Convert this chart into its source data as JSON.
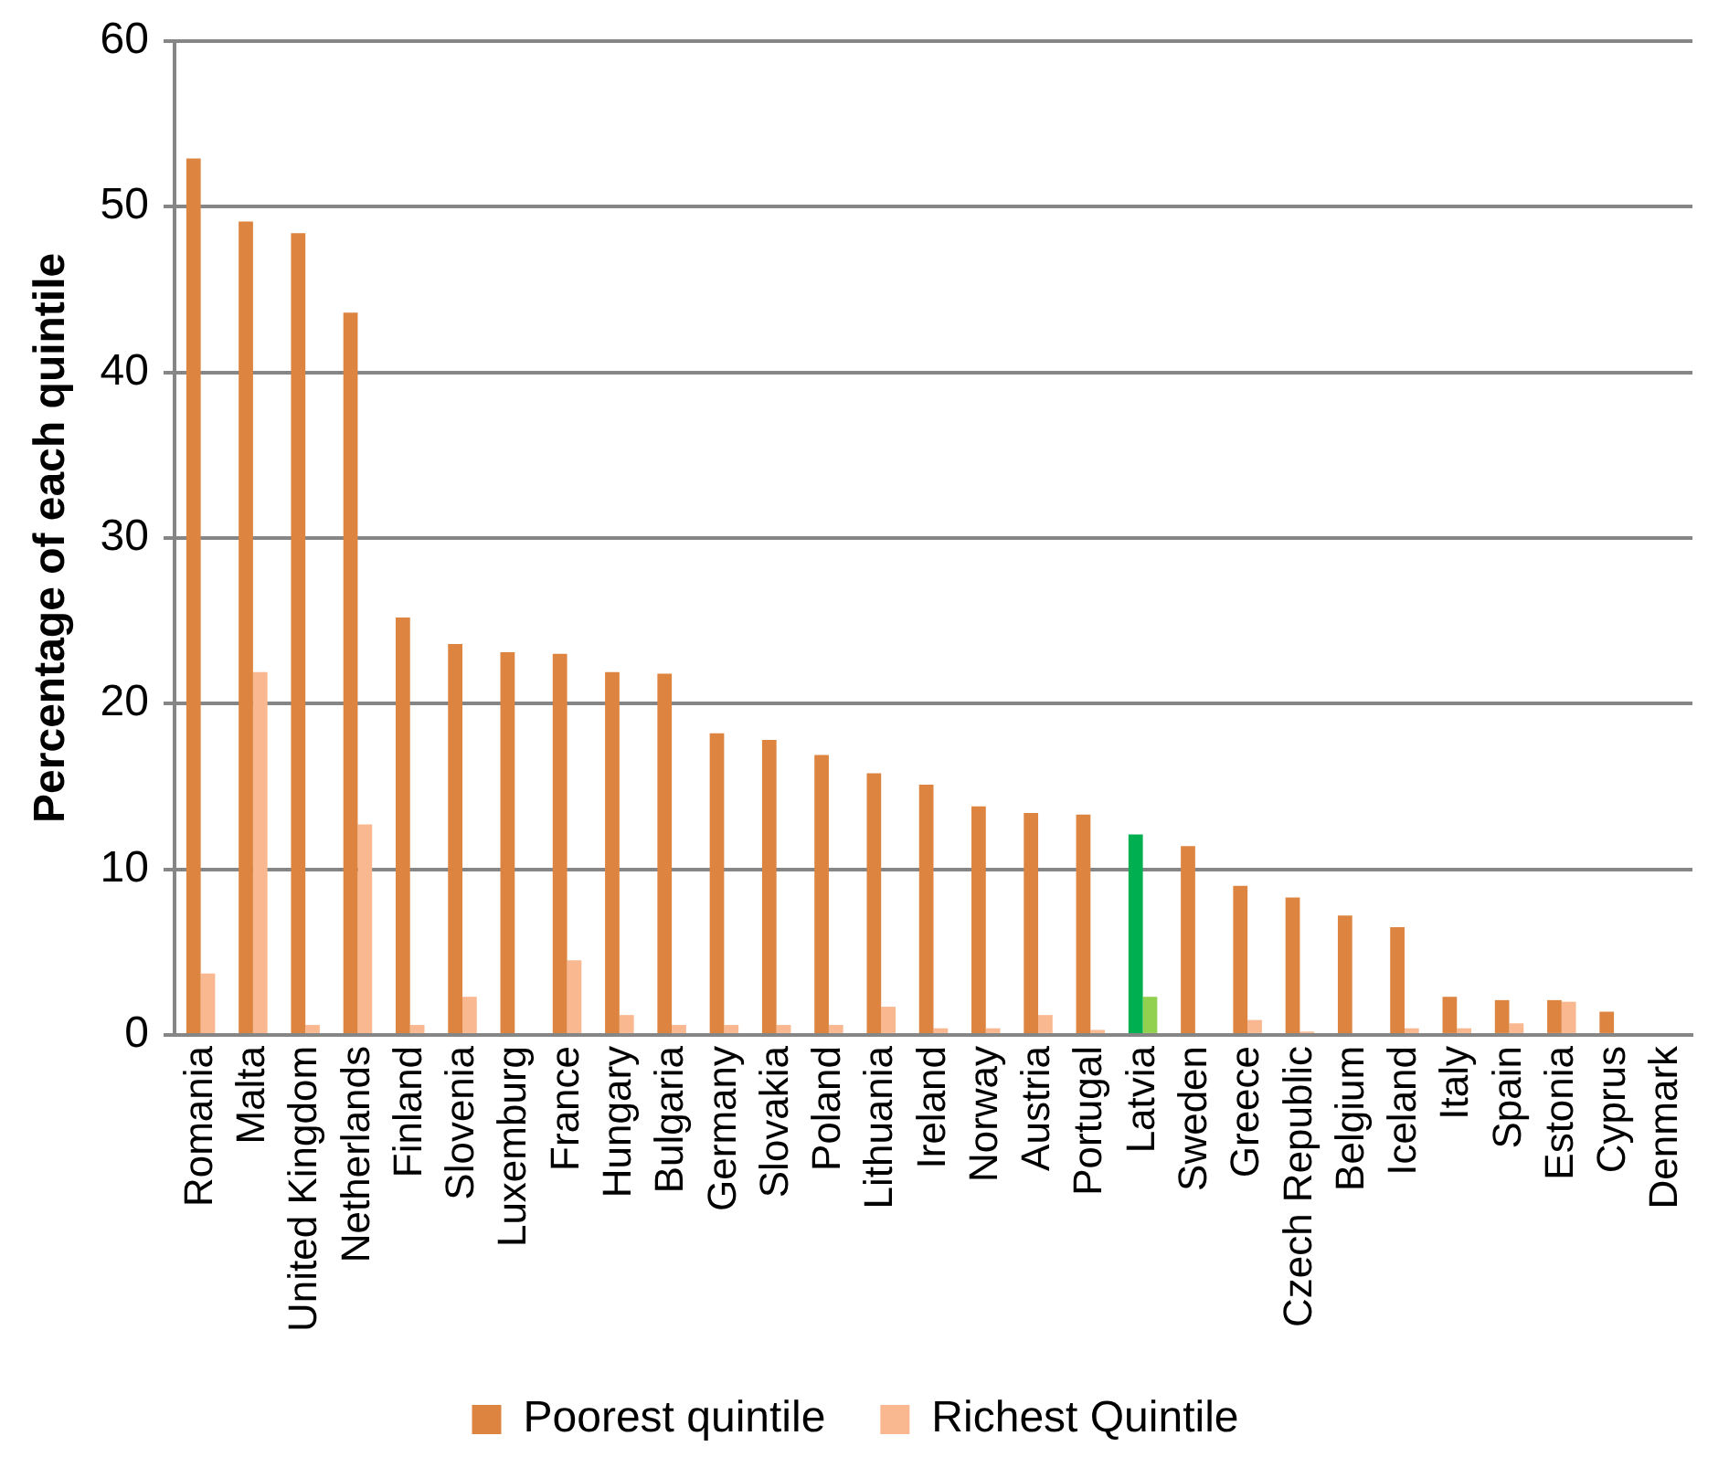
{
  "chart_data": {
    "type": "bar",
    "ylabel": "Percentage of each quintile",
    "categories": [
      "Romania",
      "Malta",
      "United Kingdom",
      "Netherlands",
      "Finland",
      "Slovenia",
      "Luxemburg",
      "France",
      "Hungary",
      "Bulgaria",
      "Germany",
      "Slovakia",
      "Poland",
      "Lithuania",
      "Ireland",
      "Norway",
      "Austria",
      "Portugal",
      "Latvia",
      "Sweden",
      "Greece",
      "Czech Republic",
      "Belgium",
      "Iceland",
      "Italy",
      "Spain",
      "Estonia",
      "Cyprus",
      "Denmark"
    ],
    "series": [
      {
        "name": "Poorest quintile",
        "color": "#dd8540",
        "colors": [
          "#dd8540",
          "#dd8540",
          "#dd8540",
          "#dd8540",
          "#dd8540",
          "#dd8540",
          "#dd8540",
          "#dd8540",
          "#dd8540",
          "#dd8540",
          "#dd8540",
          "#dd8540",
          "#dd8540",
          "#dd8540",
          "#dd8540",
          "#dd8540",
          "#dd8540",
          "#dd8540",
          "#00b050",
          "#dd8540",
          "#dd8540",
          "#dd8540",
          "#dd8540",
          "#dd8540",
          "#dd8540",
          "#dd8540",
          "#dd8540",
          "#dd8540",
          "#dd8540"
        ],
        "values": [
          52.9,
          49.1,
          48.4,
          43.6,
          25.2,
          23.6,
          23.1,
          23.0,
          21.9,
          21.8,
          18.2,
          17.8,
          16.9,
          15.8,
          15.1,
          13.8,
          13.4,
          13.3,
          12.1,
          11.4,
          9.0,
          8.3,
          7.2,
          6.5,
          2.3,
          2.1,
          2.1,
          1.4,
          0
        ]
      },
      {
        "name": "Richest Quintile",
        "color": "#f9b890",
        "colors": [
          "#f9b890",
          "#f9b890",
          "#f9b890",
          "#f9b890",
          "#f9b890",
          "#f9b890",
          "#f9b890",
          "#f9b890",
          "#f9b890",
          "#f9b890",
          "#f9b890",
          "#f9b890",
          "#f9b890",
          "#f9b890",
          "#f9b890",
          "#f9b890",
          "#f9b890",
          "#f9b890",
          "#92d050",
          "#f9b890",
          "#f9b890",
          "#f9b890",
          "#f9b890",
          "#f9b890",
          "#f9b890",
          "#f9b890",
          "#f9b890",
          "#f9b890",
          "#f9b890"
        ],
        "values": [
          3.7,
          21.9,
          0.6,
          12.7,
          0.6,
          2.3,
          0,
          4.5,
          1.2,
          0.6,
          0.6,
          0.6,
          0.6,
          1.7,
          0.4,
          0.4,
          1.2,
          0.3,
          2.3,
          0,
          0.9,
          0.2,
          0,
          0.4,
          0.4,
          0.7,
          2.0,
          0,
          0
        ]
      }
    ],
    "ylim": [
      0,
      60
    ],
    "yticks": [
      0,
      10,
      20,
      30,
      40,
      50,
      60
    ],
    "grid": "y",
    "legend": "bottom"
  }
}
